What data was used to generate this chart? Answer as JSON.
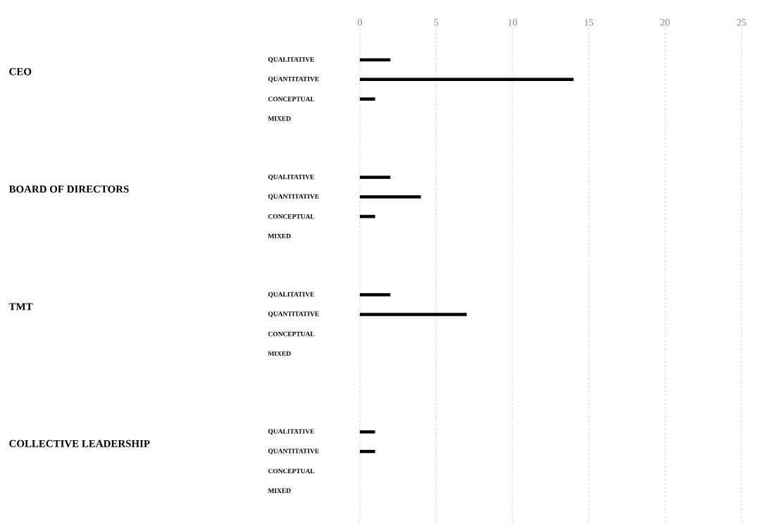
{
  "chart_data": {
    "type": "bar",
    "orientation": "horizontal",
    "categories": [
      "QUALITATIVE",
      "QUANTITATIVE",
      "CONCEPTUAL",
      "MIXED",
      null,
      null,
      "QUALITATIVE",
      "QUANTITATIVE",
      "CONCEPTUAL",
      "MIXED",
      null,
      null,
      "QUALITATIVE",
      "QUANTITATIVE",
      "CONCEPTUAL",
      "MIXED",
      null,
      null,
      null,
      "QUALITATIVE",
      "QUANTITATIVE",
      "CONCEPTUAL",
      "MIXED"
    ],
    "values": [
      2,
      14,
      1,
      null,
      null,
      null,
      2,
      4,
      1,
      null,
      null,
      null,
      2,
      7,
      null,
      null,
      null,
      null,
      null,
      1,
      1,
      null,
      null
    ],
    "color": "#000000",
    "xlim": [
      0,
      25
    ],
    "xticks": [
      0,
      5,
      10,
      15,
      20,
      25
    ],
    "grid": "x",
    "annotations": [
      "CEO",
      "BOARD OF DIRECTORS",
      "TMT",
      "COLLECTIVE LEADERSHIP"
    ]
  }
}
